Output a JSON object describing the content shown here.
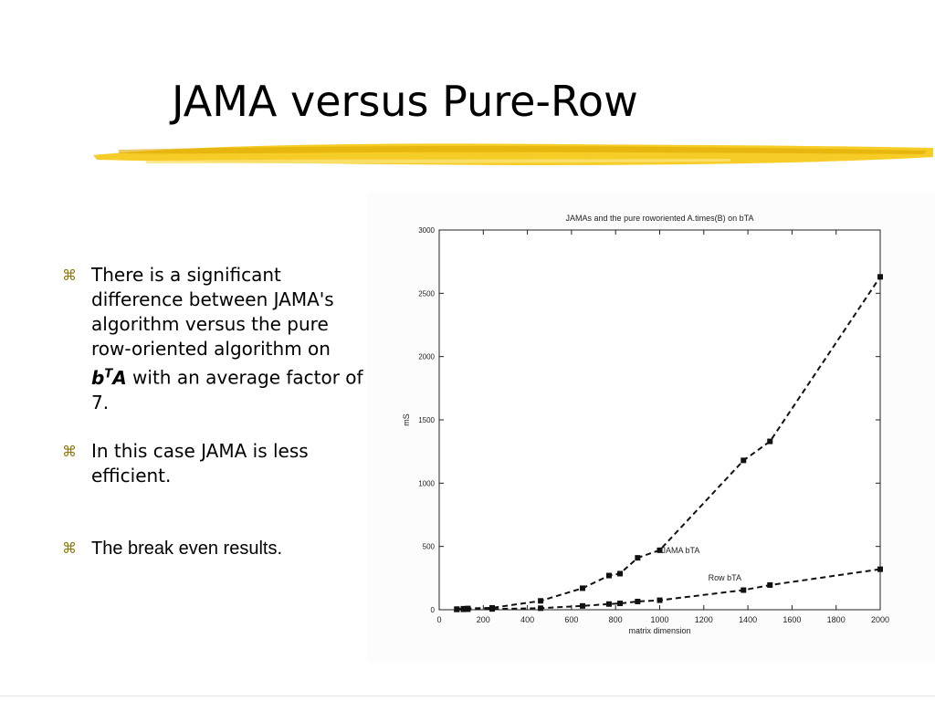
{
  "slide": {
    "title": "JAMA versus Pure-Row",
    "bullet_icon": "command-key-icon",
    "bullets": [
      {
        "line1": "There is a significant difference between JAMA's algorithm versus the pure row-oriented algorithm on",
        "math_b": "b",
        "math_T": "T",
        "math_A": "A",
        "line2": "with an average factor of 7."
      },
      {
        "text": "In this case JAMA is less efficient."
      },
      {
        "text": "The break even results."
      }
    ]
  },
  "colors": {
    "accent_stroke": "#f5c400",
    "bullet_icon": "#8a7a10"
  },
  "chart_data": {
    "type": "line",
    "title": "JAMAs and the pure roworiented A.times(B) on bTA",
    "xlabel": "matrix dimension",
    "ylabel": "mS",
    "xlim": [
      0,
      2000
    ],
    "ylim": [
      0,
      3000
    ],
    "xticks": [
      0,
      200,
      400,
      600,
      800,
      1000,
      1200,
      1400,
      1600,
      1800,
      2000
    ],
    "yticks": [
      0,
      500,
      1000,
      1500,
      2000,
      2500,
      3000
    ],
    "grid": false,
    "series": [
      {
        "name": "JAMA bTA",
        "x": [
          80,
          110,
          130,
          240,
          460,
          650,
          770,
          820,
          900,
          1000,
          1380,
          1500,
          2000
        ],
        "y": [
          5,
          8,
          10,
          15,
          70,
          170,
          270,
          285,
          410,
          470,
          1180,
          1330,
          2630
        ]
      },
      {
        "name": "Row bTA",
        "x": [
          80,
          110,
          130,
          240,
          460,
          650,
          770,
          820,
          900,
          1000,
          1380,
          1500,
          2000
        ],
        "y": [
          2,
          3,
          4,
          6,
          12,
          30,
          45,
          50,
          65,
          75,
          155,
          195,
          320
        ]
      }
    ],
    "annotations": [
      "JAMA bTA",
      "Row bTA"
    ]
  }
}
